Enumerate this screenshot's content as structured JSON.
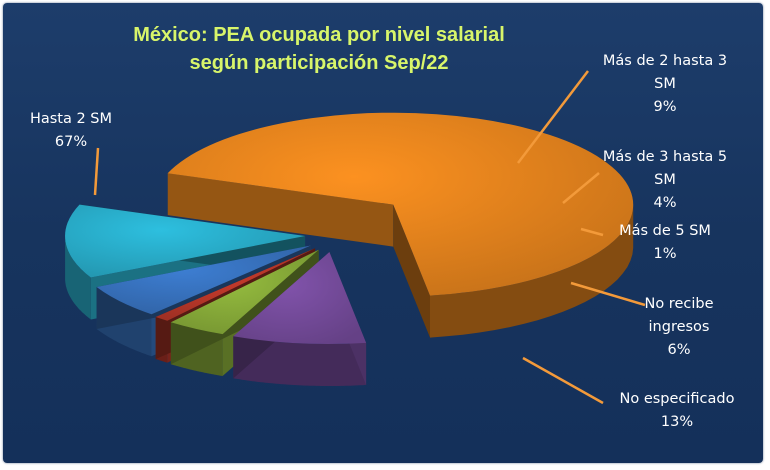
{
  "chart_data": {
    "type": "pie",
    "title": "México: PEA ocupada por nivel salarial",
    "subtitle": "según participación Sep/22",
    "categories": [
      "Hasta 2 SM",
      "Más de 2 hasta 3 SM",
      "Más de 3 hasta 5 SM",
      "Más de 5 SM",
      "No recibe ingresos",
      "No especificado"
    ],
    "values": [
      67,
      9,
      4,
      1,
      6,
      13
    ],
    "value_labels": [
      "67%",
      "9%",
      "4%",
      "1%",
      "6%",
      "13%"
    ],
    "colors": [
      "#f08a1e",
      "#7b4fa3",
      "#8fb43c",
      "#c0392b",
      "#3a78c8",
      "#2bb6d4"
    ],
    "exploded": true,
    "three_d": true,
    "legend": "none",
    "leader_line_color": "#f39a3a"
  },
  "labels": [
    {
      "lines": [
        "Hasta 2 SM",
        "67%"
      ]
    },
    {
      "lines": [
        "Más de 2 hasta 3",
        "SM",
        "9%"
      ]
    },
    {
      "lines": [
        "Más de 3 hasta 5",
        "SM",
        "4%"
      ]
    },
    {
      "lines": [
        "Más de 5 SM",
        "1%"
      ]
    },
    {
      "lines": [
        "No recibe",
        "ingresos",
        "6%"
      ]
    },
    {
      "lines": [
        "No especificado",
        "13%"
      ]
    }
  ],
  "colors": {
    "background": "#17355f",
    "title": "#d8f56a",
    "label_text": "#ffffff"
  }
}
